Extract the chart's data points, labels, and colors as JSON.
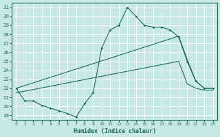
{
  "xlabel": "Humidex (Indice chaleur)",
  "background_color": "#c8e8e8",
  "line_color": "#1a6b5a",
  "grid_color": "#ffffff",
  "xlim": [
    -0.5,
    23.5
  ],
  "ylim": [
    18.5,
    31.5
  ],
  "yticks": [
    19,
    20,
    21,
    22,
    23,
    24,
    25,
    26,
    27,
    28,
    29,
    30,
    31
  ],
  "xticks": [
    0,
    1,
    2,
    3,
    4,
    5,
    6,
    7,
    8,
    9,
    10,
    11,
    12,
    13,
    14,
    15,
    16,
    17,
    18,
    19,
    20,
    21,
    22,
    23
  ],
  "line1_x": [
    0,
    1,
    2,
    3,
    4,
    5,
    6,
    7,
    8,
    9,
    10,
    11,
    12,
    13,
    14,
    15,
    16,
    17,
    18,
    19,
    20,
    21,
    22,
    23
  ],
  "line1_y": [
    22.0,
    20.6,
    20.6,
    20.1,
    19.8,
    19.5,
    19.2,
    18.8,
    20.3,
    21.5,
    26.5,
    28.5,
    29.0,
    31.0,
    30.0,
    29.0,
    28.8,
    28.8,
    28.5,
    27.7,
    25.0,
    22.8,
    22.0,
    22.0
  ],
  "line2_x": [
    0,
    19,
    20,
    21,
    22,
    23
  ],
  "line2_y": [
    22.0,
    27.8,
    25.2,
    22.8,
    22.0,
    22.0
  ],
  "line3_x": [
    0,
    19,
    20,
    21,
    22,
    23
  ],
  "line3_y": [
    21.5,
    25.0,
    22.5,
    22.0,
    21.8,
    21.8
  ]
}
